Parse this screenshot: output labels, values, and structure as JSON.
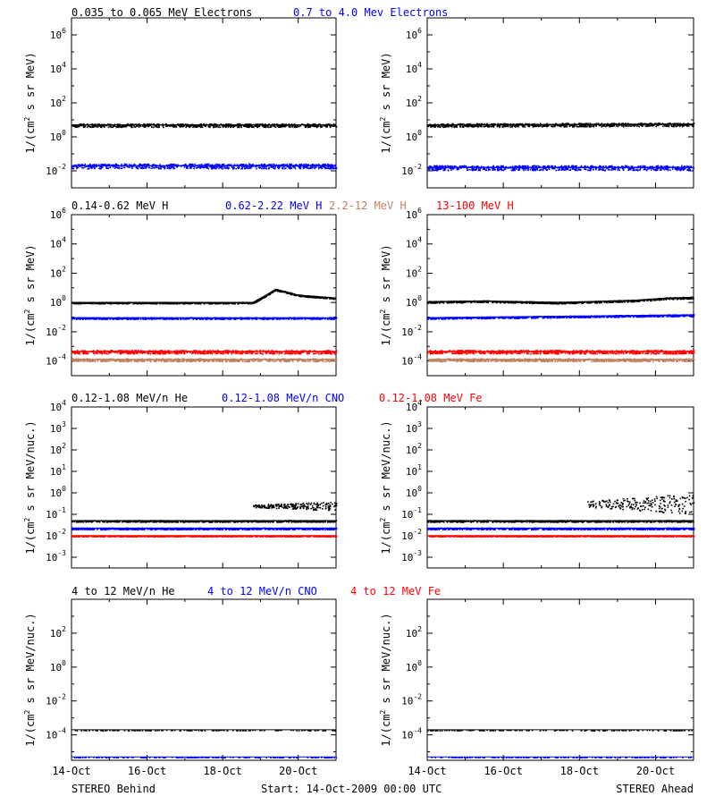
{
  "colors": {
    "black": "#000000",
    "blue": "#0000ff",
    "tan": "#c08060",
    "red": "#ff0000"
  },
  "footer": {
    "left": "STEREO Behind",
    "center": "Start: 14-Oct-2009 00:00 UTC",
    "right": "STEREO Ahead"
  },
  "chart_data": [
    {
      "type": "scatter",
      "row": 1,
      "yscale": "log",
      "ylim_exp": [
        -3,
        7
      ],
      "ytick_exps": [
        -2,
        0,
        2,
        4,
        6
      ],
      "ylabel": "1/(cm2 s sr MeV)",
      "ylabel_base": "1/(cm",
      "ylabel_sup": "2",
      "ylabel_tail": " s sr MeV)",
      "xticks": [
        "14-Oct",
        "16-Oct",
        "18-Oct",
        "20-Oct"
      ],
      "legend": [
        {
          "text": "0.035 to 0.065 MeV Electrons",
          "color": "black"
        },
        {
          "text": "0.7 to 4.0 Mev Electrons",
          "color": "blue"
        }
      ],
      "panels": {
        "behind": {
          "series": [
            {
              "name": "0.035 to 0.065 MeV Electrons",
              "color": "black",
              "log_level": [
                [
                  0,
                  0.7
                ],
                [
                  7,
                  0.7
                ]
              ],
              "spread": 0.1
            },
            {
              "name": "0.7 to 4.0 Mev Electrons",
              "color": "blue",
              "log_level": [
                [
                  0,
                  -1.7
                ],
                [
                  7,
                  -1.7
                ]
              ],
              "spread": 0.14
            }
          ]
        },
        "ahead": {
          "series": [
            {
              "name": "0.035 to 0.065 MeV Electrons",
              "color": "black",
              "log_level": [
                [
                  0,
                  0.7
                ],
                [
                  7,
                  0.75
                ]
              ],
              "spread": 0.1
            },
            {
              "name": "0.7 to 4.0 Mev Electrons",
              "color": "blue",
              "log_level": [
                [
                  0,
                  -1.8
                ],
                [
                  7,
                  -1.8
                ]
              ],
              "spread": 0.14
            }
          ]
        }
      }
    },
    {
      "type": "scatter",
      "row": 2,
      "yscale": "log",
      "ylim_exp": [
        -5,
        6
      ],
      "ytick_exps": [
        -4,
        -2,
        0,
        2,
        4,
        6
      ],
      "ylabel": "1/(cm2 s sr MeV)",
      "ylabel_base": "1/(cm",
      "ylabel_sup": "2",
      "ylabel_tail": " s sr MeV)",
      "xticks": [
        "14-Oct",
        "16-Oct",
        "18-Oct",
        "20-Oct"
      ],
      "legend": [
        {
          "text": "0.14-0.62 MeV H",
          "color": "black"
        },
        {
          "text": "0.62-2.22 MeV H",
          "color": "blue"
        },
        {
          "text": "2.2-12 MeV H",
          "color": "tan"
        },
        {
          "text": "13-100 MeV H",
          "color": "red"
        }
      ],
      "panels": {
        "behind": {
          "series": [
            {
              "name": "0.14-0.62 MeV H",
              "color": "black",
              "log_level": [
                [
                  0,
                  0
                ],
                [
                  4.8,
                  0
                ],
                [
                  5.15,
                  0.5
                ],
                [
                  5.4,
                  0.9
                ],
                [
                  6,
                  0.5
                ],
                [
                  7,
                  0.3
                ]
              ],
              "spread": 0.05
            },
            {
              "name": "0.62-2.22 MeV H",
              "color": "blue",
              "log_level": [
                [
                  0,
                  -1.05
                ],
                [
                  7,
                  -1.05
                ]
              ],
              "spread": 0.06
            },
            {
              "name": "2.2-12 MeV H",
              "color": "tan",
              "log_level": [
                [
                  0,
                  -3.9
                ],
                [
                  7,
                  -3.9
                ]
              ],
              "spread": 0.1
            },
            {
              "name": "13-100 MeV H",
              "color": "red",
              "log_level": [
                [
                  0,
                  -3.35
                ],
                [
                  7,
                  -3.35
                ]
              ],
              "spread": 0.12
            }
          ]
        },
        "ahead": {
          "series": [
            {
              "name": "0.14-0.62 MeV H",
              "color": "black",
              "log_level": [
                [
                  0,
                  0.05
                ],
                [
                  1.5,
                  0.1
                ],
                [
                  3.5,
                  0
                ],
                [
                  5.5,
                  0.15
                ],
                [
                  6.3,
                  0.3
                ],
                [
                  7,
                  0.35
                ]
              ],
              "spread": 0.06
            },
            {
              "name": "0.62-2.22 MeV H",
              "color": "blue",
              "log_level": [
                [
                  0,
                  -1.05
                ],
                [
                  7,
                  -0.85
                ]
              ],
              "spread": 0.06
            },
            {
              "name": "2.2-12 MeV H",
              "color": "tan",
              "log_level": [
                [
                  0,
                  -3.9
                ],
                [
                  7,
                  -3.9
                ]
              ],
              "spread": 0.1
            },
            {
              "name": "13-100 MeV H",
              "color": "red",
              "log_level": [
                [
                  0,
                  -3.35
                ],
                [
                  7,
                  -3.35
                ]
              ],
              "spread": 0.12
            }
          ]
        }
      }
    },
    {
      "type": "scatter",
      "row": 3,
      "yscale": "log",
      "ylim_exp": [
        -3.5,
        4
      ],
      "ytick_exps": [
        -3,
        -2,
        -1,
        0,
        1,
        2,
        3,
        4
      ],
      "ylabel": "1/(cm2 s sr MeV/nuc.)",
      "ylabel_base": "1/(cm",
      "ylabel_sup": "2",
      "ylabel_tail": " s sr MeV/nuc.)",
      "xticks": [
        "14-Oct",
        "16-Oct",
        "18-Oct",
        "20-Oct"
      ],
      "legend": [
        {
          "text": "0.12-1.08 MeV/n He",
          "color": "black"
        },
        {
          "text": "0.12-1.08 MeV/n CNO",
          "color": "blue"
        },
        {
          "text": "0.12-1.08 MeV Fe",
          "color": "red"
        }
      ],
      "panels": {
        "behind": {
          "series": [
            {
              "name": "0.12-1.08 MeV/n He",
              "color": "black",
              "log_level": [
                [
                  0,
                  -1.3
                ],
                [
                  7,
                  -1.3
                ]
              ],
              "spread": 0.04,
              "extra": [
                [
                  4.8,
                  7,
                  -0.6,
                  0.15
                ]
              ]
            },
            {
              "name": "0.12-1.08 MeV/n CNO",
              "color": "blue",
              "log_level": [
                [
                  0,
                  -1.65
                ],
                [
                  7,
                  -1.65
                ]
              ],
              "spread": 0.04
            },
            {
              "name": "0.12-1.08 MeV Fe",
              "color": "red",
              "log_level": [
                [
                  0,
                  -2
                ],
                [
                  7,
                  -2
                ]
              ],
              "spread": 0.01
            }
          ]
        },
        "ahead": {
          "series": [
            {
              "name": "0.12-1.08 MeV/n He",
              "color": "black",
              "log_level": [
                [
                  0,
                  -1.3
                ],
                [
                  7,
                  -1.3
                ]
              ],
              "spread": 0.04,
              "extra": [
                [
                  4.2,
                  7,
                  -0.5,
                  0.35
                ]
              ]
            },
            {
              "name": "0.12-1.08 MeV/n CNO",
              "color": "blue",
              "log_level": [
                [
                  0,
                  -1.65
                ],
                [
                  7,
                  -1.65
                ]
              ],
              "spread": 0.04
            },
            {
              "name": "0.12-1.08 MeV Fe",
              "color": "red",
              "log_level": [
                [
                  0,
                  -2
                ],
                [
                  7,
                  -2
                ]
              ],
              "spread": 0.01
            }
          ]
        }
      }
    },
    {
      "type": "scatter",
      "row": 4,
      "yscale": "log",
      "ylim_exp": [
        -5.5,
        4
      ],
      "ytick_exps": [
        -4,
        -2,
        0,
        2
      ],
      "ylabel": "1/(cm2 s sr MeV/nuc.)",
      "ylabel_base": "1/(cm",
      "ylabel_sup": "2",
      "ylabel_tail": " s sr MeV/nuc.)",
      "xticks": [
        "14-Oct",
        "16-Oct",
        "18-Oct",
        "20-Oct"
      ],
      "legend": [
        {
          "text": "4 to 12 MeV/n He",
          "color": "black"
        },
        {
          "text": "4 to 12 MeV/n CNO",
          "color": "blue"
        },
        {
          "text": "4 to 12 MeV Fe",
          "color": "red"
        }
      ],
      "panels": {
        "behind": {
          "series": [
            {
              "name": "4 to 12 MeV/n He",
              "color": "black",
              "log_level": [
                [
                  0,
                  -3.7
                ],
                [
                  7,
                  -3.7
                ]
              ],
              "spread": 0.02,
              "sparse": true
            },
            {
              "name": "4 to 12 MeV/n CNO",
              "color": "blue",
              "log_level": [
                [
                  0,
                  -5.3
                ],
                [
                  7,
                  -5.3
                ]
              ],
              "spread": 0.01,
              "sparse": true
            }
          ]
        },
        "ahead": {
          "series": [
            {
              "name": "4 to 12 MeV/n He",
              "color": "black",
              "log_level": [
                [
                  0,
                  -3.7
                ],
                [
                  7,
                  -3.7
                ]
              ],
              "spread": 0.02,
              "sparse": true
            },
            {
              "name": "4 to 12 MeV/n CNO",
              "color": "blue",
              "log_level": [
                [
                  0,
                  -5.3
                ],
                [
                  7,
                  -5.3
                ]
              ],
              "spread": 0.01,
              "sparse": true
            }
          ]
        }
      }
    }
  ]
}
